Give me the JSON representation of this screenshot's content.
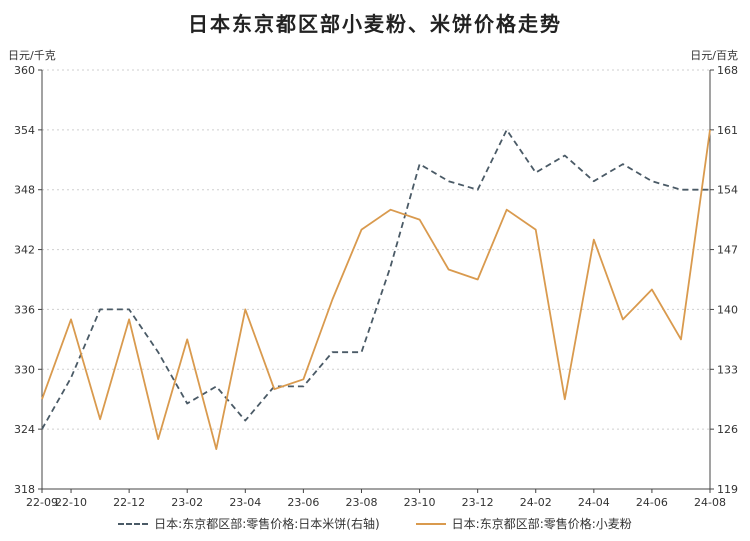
{
  "chart_data": {
    "type": "line",
    "title": "日本东京都区部小麦粉、米饼价格走势",
    "left_unit": "日元/千克",
    "right_unit": "日元/百克",
    "x_labels": [
      "22-09",
      "22-10",
      "22-12",
      "23-02",
      "23-04",
      "23-06",
      "23-08",
      "23-10",
      "23-12",
      "24-02",
      "24-04",
      "24-06",
      "24-08"
    ],
    "left_axis": {
      "min": 318,
      "max": 360,
      "ticks": [
        318,
        324,
        330,
        336,
        342,
        348,
        354,
        360
      ]
    },
    "right_axis": {
      "min": 119,
      "max": 168,
      "ticks": [
        119,
        126,
        133,
        140,
        147,
        154,
        161,
        168
      ]
    },
    "x": [
      "22-09",
      "22-10",
      "22-11",
      "22-12",
      "23-01",
      "23-02",
      "23-03",
      "23-04",
      "23-05",
      "23-06",
      "23-07",
      "23-08",
      "23-09",
      "23-10",
      "23-11",
      "23-12",
      "24-01",
      "24-02",
      "24-03",
      "24-04",
      "24-05",
      "24-06",
      "24-07",
      "24-08"
    ],
    "series": [
      {
        "name": "日本:东京都区部:零售价格:日本米饼(右轴)",
        "axis": "right",
        "style": "dashed",
        "color": "#4a5a66",
        "values": [
          126,
          132,
          140,
          140,
          135,
          129,
          131,
          127,
          131,
          131,
          135,
          135,
          145,
          157,
          155,
          154,
          161,
          156,
          158,
          155,
          157,
          155,
          154,
          154
        ]
      },
      {
        "name": "日本:东京都区部:零售价格:小麦粉",
        "axis": "left",
        "style": "solid",
        "color": "#d99a4e",
        "values": [
          327,
          335,
          325,
          335,
          323,
          333,
          322,
          336,
          328,
          329,
          337,
          344,
          346,
          345,
          340,
          339,
          346,
          344,
          327,
          343,
          335,
          338,
          333,
          354
        ]
      }
    ]
  }
}
